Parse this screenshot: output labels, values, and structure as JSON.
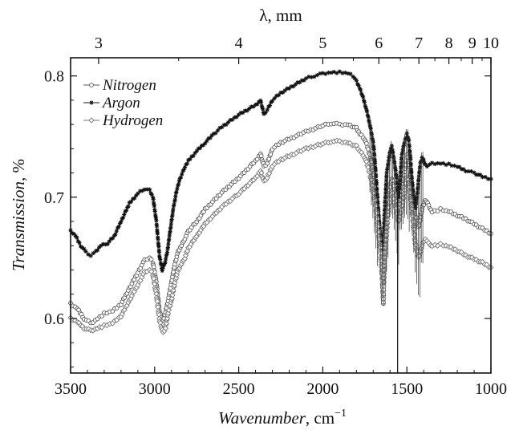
{
  "chart_data": {
    "type": "scatter",
    "title": "",
    "xlabel": "Wavenumber",
    "xlabel_unit": ", cm",
    "xlabel_unit_exp": "−1",
    "ylabel": "Transmission",
    "ylabel_unit": ", %",
    "x2label": "λ, mm",
    "xlim": [
      3500,
      1000
    ],
    "ylim": [
      0.555,
      0.815
    ],
    "x_ticks": [
      3500,
      3000,
      2500,
      2000,
      1500,
      1000
    ],
    "x_tick_labels": [
      "3500",
      "3000",
      "2500",
      "2000",
      "1500",
      "1000"
    ],
    "y_ticks": [
      0.6,
      0.7,
      0.8
    ],
    "y_tick_labels": [
      "0.6",
      "0.7",
      "0.8"
    ],
    "top_ticks": [
      3,
      4,
      5,
      6,
      7,
      8,
      9,
      10
    ],
    "top_tick_labels": [
      "3",
      "4",
      "5",
      "6",
      "7",
      "8",
      "9",
      "10"
    ],
    "grid": false,
    "legend_position": "top-left",
    "series": [
      {
        "name": "Nitrogen",
        "marker": "open-circle",
        "color": "#555555",
        "points": [
          [
            3500,
            0.612
          ],
          [
            3460,
            0.608
          ],
          [
            3420,
            0.6
          ],
          [
            3380,
            0.596
          ],
          [
            3340,
            0.6
          ],
          [
            3300,
            0.604
          ],
          [
            3250,
            0.606
          ],
          [
            3200,
            0.612
          ],
          [
            3150,
            0.625
          ],
          [
            3100,
            0.638
          ],
          [
            3060,
            0.648
          ],
          [
            3030,
            0.65
          ],
          [
            3010,
            0.646
          ],
          [
            2990,
            0.63
          ],
          [
            2970,
            0.605
          ],
          [
            2950,
            0.598
          ],
          [
            2935,
            0.605
          ],
          [
            2920,
            0.615
          ],
          [
            2900,
            0.63
          ],
          [
            2880,
            0.645
          ],
          [
            2860,
            0.655
          ],
          [
            2840,
            0.66
          ],
          [
            2820,
            0.666
          ],
          [
            2800,
            0.672
          ],
          [
            2750,
            0.68
          ],
          [
            2700,
            0.69
          ],
          [
            2600,
            0.704
          ],
          [
            2500,
            0.716
          ],
          [
            2400,
            0.73
          ],
          [
            2370,
            0.736
          ],
          [
            2350,
            0.725
          ],
          [
            2330,
            0.728
          ],
          [
            2300,
            0.74
          ],
          [
            2250,
            0.745
          ],
          [
            2200,
            0.748
          ],
          [
            2100,
            0.754
          ],
          [
            2000,
            0.759
          ],
          [
            1950,
            0.761
          ],
          [
            1900,
            0.76
          ],
          [
            1850,
            0.76
          ],
          [
            1800,
            0.757
          ],
          [
            1780,
            0.752
          ],
          [
            1750,
            0.748
          ],
          [
            1720,
            0.735
          ],
          [
            1700,
            0.72
          ],
          [
            1680,
            0.7
          ],
          [
            1660,
            0.67
          ],
          [
            1650,
            0.64
          ],
          [
            1640,
            0.612
          ],
          [
            1630,
            0.66
          ],
          [
            1610,
            0.7
          ],
          [
            1590,
            0.715
          ],
          [
            1570,
            0.705
          ],
          [
            1550,
            0.69
          ],
          [
            1530,
            0.705
          ],
          [
            1510,
            0.725
          ],
          [
            1500,
            0.735
          ],
          [
            1490,
            0.73
          ],
          [
            1470,
            0.71
          ],
          [
            1450,
            0.685
          ],
          [
            1430,
            0.675
          ],
          [
            1410,
            0.69
          ],
          [
            1390,
            0.698
          ],
          [
            1370,
            0.693
          ],
          [
            1350,
            0.688
          ],
          [
            1300,
            0.69
          ],
          [
            1250,
            0.688
          ],
          [
            1200,
            0.685
          ],
          [
            1150,
            0.682
          ],
          [
            1100,
            0.678
          ],
          [
            1050,
            0.674
          ],
          [
            1000,
            0.67
          ]
        ]
      },
      {
        "name": "Argon",
        "marker": "star",
        "color": "#111111",
        "points": [
          [
            3500,
            0.672
          ],
          [
            3470,
            0.668
          ],
          [
            3440,
            0.66
          ],
          [
            3410,
            0.655
          ],
          [
            3380,
            0.652
          ],
          [
            3350,
            0.655
          ],
          [
            3320,
            0.66
          ],
          [
            3280,
            0.662
          ],
          [
            3240,
            0.668
          ],
          [
            3200,
            0.68
          ],
          [
            3150,
            0.695
          ],
          [
            3100,
            0.703
          ],
          [
            3060,
            0.707
          ],
          [
            3030,
            0.706
          ],
          [
            3010,
            0.7
          ],
          [
            2990,
            0.68
          ],
          [
            2970,
            0.65
          ],
          [
            2955,
            0.64
          ],
          [
            2940,
            0.645
          ],
          [
            2925,
            0.655
          ],
          [
            2910,
            0.67
          ],
          [
            2890,
            0.69
          ],
          [
            2870,
            0.705
          ],
          [
            2850,
            0.715
          ],
          [
            2820,
            0.725
          ],
          [
            2800,
            0.73
          ],
          [
            2750,
            0.738
          ],
          [
            2700,
            0.745
          ],
          [
            2650,
            0.752
          ],
          [
            2600,
            0.758
          ],
          [
            2550,
            0.763
          ],
          [
            2500,
            0.768
          ],
          [
            2450,
            0.772
          ],
          [
            2400,
            0.776
          ],
          [
            2370,
            0.78
          ],
          [
            2350,
            0.768
          ],
          [
            2330,
            0.772
          ],
          [
            2300,
            0.78
          ],
          [
            2250,
            0.786
          ],
          [
            2200,
            0.79
          ],
          [
            2150,
            0.794
          ],
          [
            2100,
            0.798
          ],
          [
            2050,
            0.8
          ],
          [
            2000,
            0.802
          ],
          [
            1950,
            0.803
          ],
          [
            1900,
            0.803
          ],
          [
            1850,
            0.802
          ],
          [
            1820,
            0.8
          ],
          [
            1800,
            0.796
          ],
          [
            1780,
            0.79
          ],
          [
            1760,
            0.782
          ],
          [
            1740,
            0.772
          ],
          [
            1720,
            0.76
          ],
          [
            1700,
            0.745
          ],
          [
            1690,
            0.73
          ],
          [
            1680,
            0.71
          ],
          [
            1670,
            0.69
          ],
          [
            1660,
            0.67
          ],
          [
            1650,
            0.655
          ],
          [
            1640,
            0.665
          ],
          [
            1630,
            0.695
          ],
          [
            1620,
            0.72
          ],
          [
            1600,
            0.738
          ],
          [
            1590,
            0.742
          ],
          [
            1575,
            0.73
          ],
          [
            1560,
            0.715
          ],
          [
            1550,
            0.7
          ],
          [
            1540,
            0.715
          ],
          [
            1530,
            0.735
          ],
          [
            1515,
            0.745
          ],
          [
            1500,
            0.752
          ],
          [
            1490,
            0.748
          ],
          [
            1480,
            0.735
          ],
          [
            1470,
            0.715
          ],
          [
            1460,
            0.7
          ],
          [
            1450,
            0.69
          ],
          [
            1440,
            0.7
          ],
          [
            1430,
            0.715
          ],
          [
            1420,
            0.728
          ],
          [
            1410,
            0.733
          ],
          [
            1400,
            0.73
          ],
          [
            1390,
            0.727
          ],
          [
            1380,
            0.726
          ],
          [
            1350,
            0.728
          ],
          [
            1300,
            0.728
          ],
          [
            1250,
            0.727
          ],
          [
            1200,
            0.725
          ],
          [
            1150,
            0.722
          ],
          [
            1100,
            0.72
          ],
          [
            1050,
            0.717
          ],
          [
            1000,
            0.715
          ]
        ]
      },
      {
        "name": "Hydrogen",
        "marker": "open-diamond",
        "color": "#777777",
        "points": [
          [
            3500,
            0.6
          ],
          [
            3460,
            0.597
          ],
          [
            3420,
            0.592
          ],
          [
            3380,
            0.59
          ],
          [
            3340,
            0.592
          ],
          [
            3300,
            0.594
          ],
          [
            3250,
            0.596
          ],
          [
            3200,
            0.602
          ],
          [
            3150,
            0.615
          ],
          [
            3100,
            0.628
          ],
          [
            3060,
            0.638
          ],
          [
            3030,
            0.64
          ],
          [
            3010,
            0.636
          ],
          [
            2990,
            0.62
          ],
          [
            2970,
            0.598
          ],
          [
            2950,
            0.588
          ],
          [
            2935,
            0.592
          ],
          [
            2920,
            0.605
          ],
          [
            2900,
            0.615
          ],
          [
            2880,
            0.63
          ],
          [
            2860,
            0.64
          ],
          [
            2840,
            0.645
          ],
          [
            2820,
            0.65
          ],
          [
            2800,
            0.658
          ],
          [
            2750,
            0.668
          ],
          [
            2700,
            0.678
          ],
          [
            2600,
            0.692
          ],
          [
            2500,
            0.703
          ],
          [
            2400,
            0.716
          ],
          [
            2370,
            0.722
          ],
          [
            2350,
            0.713
          ],
          [
            2330,
            0.716
          ],
          [
            2300,
            0.726
          ],
          [
            2250,
            0.731
          ],
          [
            2200,
            0.734
          ],
          [
            2100,
            0.74
          ],
          [
            2000,
            0.744
          ],
          [
            1950,
            0.746
          ],
          [
            1900,
            0.746
          ],
          [
            1850,
            0.745
          ],
          [
            1800,
            0.742
          ],
          [
            1780,
            0.738
          ],
          [
            1750,
            0.733
          ],
          [
            1720,
            0.72
          ],
          [
            1700,
            0.705
          ],
          [
            1680,
            0.686
          ],
          [
            1660,
            0.66
          ],
          [
            1650,
            0.64
          ],
          [
            1640,
            0.632
          ],
          [
            1630,
            0.655
          ],
          [
            1610,
            0.69
          ],
          [
            1590,
            0.705
          ],
          [
            1570,
            0.694
          ],
          [
            1550,
            0.68
          ],
          [
            1530,
            0.69
          ],
          [
            1510,
            0.71
          ],
          [
            1500,
            0.716
          ],
          [
            1490,
            0.712
          ],
          [
            1470,
            0.69
          ],
          [
            1450,
            0.662
          ],
          [
            1430,
            0.65
          ],
          [
            1410,
            0.66
          ],
          [
            1390,
            0.666
          ],
          [
            1370,
            0.662
          ],
          [
            1350,
            0.66
          ],
          [
            1300,
            0.661
          ],
          [
            1250,
            0.659
          ],
          [
            1200,
            0.656
          ],
          [
            1150,
            0.652
          ],
          [
            1100,
            0.649
          ],
          [
            1050,
            0.646
          ],
          [
            1000,
            0.642
          ]
        ]
      }
    ]
  }
}
